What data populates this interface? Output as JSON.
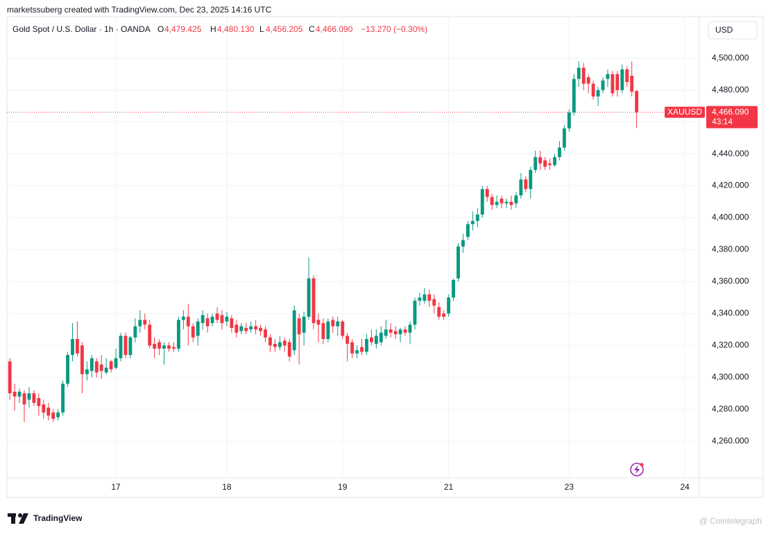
{
  "header": {
    "credit": "marketssuberg created with TradingView.com, Dec 23, 2025 14:16 UTC"
  },
  "legend": {
    "title": "Gold Spot / U.S. Dollar · 1h · OANDA",
    "o": "O",
    "open": "4,479.425",
    "h": "H",
    "high": "4,480.130",
    "l": "L",
    "low": "4,456.205",
    "c": "C",
    "close": "4,466.090",
    "change": "−13.270 (−0.30%)"
  },
  "currency_button": "USD",
  "chart_data": {
    "type": "candlestick",
    "up_color": "#089981",
    "down_color": "#f23645",
    "xlim": [
      -0.6,
      143
    ],
    "xticks": [
      {
        "value": 22,
        "label": "17"
      },
      {
        "value": 45,
        "label": "18"
      },
      {
        "value": 69,
        "label": "19"
      },
      {
        "value": 91,
        "label": "21"
      },
      {
        "value": 116,
        "label": "23"
      },
      {
        "value": 140,
        "label": "24"
      }
    ],
    "ylim": [
      4237,
      4526
    ],
    "yticks": [
      {
        "value": 4260,
        "label": "4,260.000"
      },
      {
        "value": 4280,
        "label": "4,280.000"
      },
      {
        "value": 4300,
        "label": "4,300.000"
      },
      {
        "value": 4320,
        "label": "4,320.000"
      },
      {
        "value": 4340,
        "label": "4,340.000"
      },
      {
        "value": 4360,
        "label": "4,360.000"
      },
      {
        "value": 4380,
        "label": "4,380.000"
      },
      {
        "value": 4400,
        "label": "4,400.000"
      },
      {
        "value": 4420,
        "label": "4,420.000"
      },
      {
        "value": 4440,
        "label": "4,440.000"
      },
      {
        "value": 4460,
        "label": "4,460.000"
      },
      {
        "value": 4480,
        "label": "4,480.000"
      },
      {
        "value": 4500,
        "label": "4,500.000"
      }
    ],
    "grid": true,
    "series": [
      {
        "name": "XAUUSD",
        "open": [
          4310,
          4291,
          4288,
          4290,
          4286,
          4290,
          4287,
          4283,
          4281,
          4278,
          4275,
          4278,
          4296,
          4314,
          4324,
          4320,
          4302,
          4304,
          4310,
          4308,
          4303,
          4310,
          4306,
          4312,
          4326,
          4314,
          4325,
          4332,
          4336,
          4333,
          4321,
          4322,
          4318,
          4320,
          4319,
          4318,
          4336,
          4338,
          4332,
          4326,
          4334,
          4337,
          4334,
          4340,
          4339,
          4335,
          4337,
          4333,
          4329,
          4331,
          4330,
          4332,
          4331,
          4330,
          4325,
          4321,
          4319,
          4323,
          4322,
          4317,
          4337,
          4328,
          4338,
          4362,
          4336,
          4334,
          4324,
          4336,
          4332,
          4335,
          4326,
          4322,
          4315,
          4319,
          4316,
          4325,
          4321,
          4322,
          4326,
          4330,
          4329,
          4327,
          4330,
          4328,
          4333,
          4348,
          4348,
          4352,
          4349,
          4344,
          4340,
          4340,
          4350,
          4362,
          4382,
          4388,
          4396,
          4398,
          4402,
          4418,
          4413,
          4408,
          4412,
          4409,
          4410,
          4409,
          4414,
          4424,
          4418,
          4430,
          4438,
          4436,
          4434,
          4433,
          4438,
          4444,
          4456,
          4466,
          4487,
          4494,
          4488,
          4484,
          4476,
          4480,
          4487,
          4490,
          4490,
          4480,
          4493,
          4489,
          4479.425
        ],
        "high": [
          4312,
          4296,
          4293,
          4292,
          4294,
          4292,
          4290,
          4286,
          4284,
          4280,
          4280,
          4298,
          4316,
          4334,
          4335,
          4322,
          4310,
          4314,
          4312,
          4314,
          4312,
          4311,
          4318,
          4328,
          4328,
          4326,
          4337,
          4342,
          4340,
          4336,
          4325,
          4324,
          4322,
          4322,
          4322,
          4338,
          4342,
          4346,
          4334,
          4337,
          4342,
          4340,
          4340,
          4344,
          4342,
          4341,
          4339,
          4336,
          4334,
          4334,
          4335,
          4336,
          4333,
          4332,
          4327,
          4324,
          4326,
          4325,
          4324,
          4345,
          4340,
          4341,
          4375,
          4364,
          4340,
          4337,
          4337,
          4338,
          4338,
          4336,
          4328,
          4324,
          4320,
          4324,
          4327,
          4330,
          4330,
          4332,
          4336,
          4334,
          4332,
          4331,
          4332,
          4335,
          4350,
          4353,
          4356,
          4355,
          4352,
          4347,
          4342,
          4352,
          4362,
          4384,
          4390,
          4398,
          4404,
          4406,
          4420,
          4420,
          4415,
          4414,
          4414,
          4412,
          4414,
          4416,
          4428,
          4426,
          4432,
          4442,
          4442,
          4438,
          4437,
          4440,
          4448,
          4458,
          4468,
          4490,
          4498,
          4497,
          4490,
          4486,
          4482,
          4488,
          4493,
          4492,
          4492,
          4496,
          4495,
          4498,
          4480.13
        ],
        "low": [
          4286,
          4279,
          4284,
          4272,
          4281,
          4282,
          4276,
          4274,
          4273,
          4272,
          4273,
          4276,
          4294,
          4310,
          4313,
          4290,
          4298,
          4300,
          4300,
          4299,
          4302,
          4303,
          4305,
          4310,
          4312,
          4312,
          4322,
          4328,
          4330,
          4318,
          4312,
          4314,
          4308,
          4316,
          4316,
          4316,
          4330,
          4320,
          4322,
          4320,
          4330,
          4328,
          4332,
          4334,
          4330,
          4332,
          4328,
          4325,
          4327,
          4327,
          4328,
          4327,
          4326,
          4322,
          4316,
          4316,
          4317,
          4316,
          4310,
          4314,
          4308,
          4320,
          4336,
          4330,
          4322,
          4321,
          4322,
          4328,
          4326,
          4324,
          4310,
          4312,
          4312,
          4314,
          4314,
          4320,
          4318,
          4320,
          4324,
          4325,
          4324,
          4322,
          4326,
          4321,
          4330,
          4345,
          4346,
          4344,
          4340,
          4336,
          4336,
          4338,
          4348,
          4360,
          4378,
          4386,
          4392,
          4394,
          4400,
          4410,
          4405,
          4406,
          4406,
          4406,
          4405,
          4406,
          4412,
          4416,
          4412,
          4428,
          4430,
          4430,
          4430,
          4432,
          4436,
          4442,
          4454,
          4464,
          4482,
          4480,
          4478,
          4474,
          4470,
          4478,
          4482,
          4476,
          4476,
          4478,
          4482,
          4476,
          4456.205
        ],
        "close": [
          4290,
          4288,
          4291,
          4283,
          4290,
          4284,
          4282,
          4278,
          4276,
          4274,
          4278,
          4296,
          4314,
          4324,
          4315,
          4302,
          4305,
          4312,
          4303,
          4304,
          4306,
          4305,
          4312,
          4326,
          4314,
          4325,
          4332,
          4336,
          4333,
          4320,
          4318,
          4318,
          4320,
          4318,
          4318,
          4336,
          4338,
          4332,
          4325,
          4335,
          4339,
          4332,
          4338,
          4336,
          4334,
          4338,
          4331,
          4328,
          4332,
          4329,
          4332,
          4330,
          4329,
          4325,
          4320,
          4319,
          4322,
          4320,
          4313,
          4342,
          4327,
          4338,
          4362,
          4334,
          4333,
          4324,
          4335,
          4332,
          4335,
          4326,
          4321,
          4315,
          4317,
          4316,
          4324,
          4322,
          4326,
          4328,
          4330,
          4328,
          4327,
          4330,
          4328,
          4333,
          4348,
          4350,
          4352,
          4348,
          4345,
          4338,
          4338,
          4350,
          4361,
          4382,
          4386,
          4396,
          4398,
          4402,
          4418,
          4413,
          4408,
          4410,
          4409,
          4410,
          4408,
          4414,
          4424,
          4418,
          4430,
          4438,
          4434,
          4432,
          4433,
          4438,
          4444,
          4456,
          4466,
          4487,
          4494,
          4484,
          4484,
          4476,
          4480,
          4486,
          4490,
          4478,
          4480,
          4493,
          4485,
          4479,
          4466.09
        ]
      }
    ],
    "last_price_label": "4,466.090",
    "countdown": "43:14"
  },
  "footer": {
    "logo": "TradingView",
    "watermark": "@ Cointelegraph"
  }
}
